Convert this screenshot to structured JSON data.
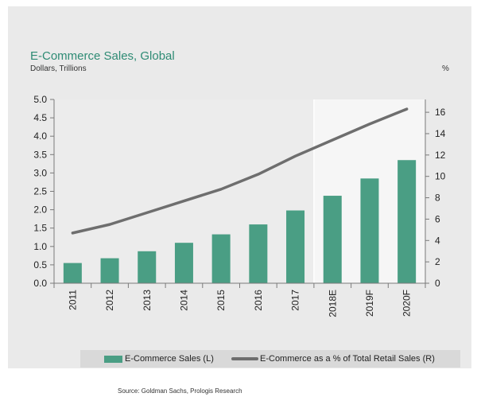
{
  "chart_data": {
    "type": "bar",
    "title": "E-Commerce Sales, Global",
    "ylabel": "Dollars, Trillions",
    "y2label": "%",
    "categories": [
      "2011",
      "2012",
      "2013",
      "2014",
      "2015",
      "2016",
      "2017",
      "2018E",
      "2019F",
      "2020F"
    ],
    "series": [
      {
        "name": "E-Commerce Sales (L)",
        "type": "bar",
        "axis": "left",
        "color": "#4a9e84",
        "values": [
          0.55,
          0.68,
          0.87,
          1.1,
          1.33,
          1.6,
          1.98,
          2.38,
          2.85,
          3.35
        ]
      },
      {
        "name": "E-Commerce as a % of Total Retail Sales (R)",
        "type": "line",
        "axis": "right",
        "color": "#6e6e6e",
        "values": [
          4.7,
          5.5,
          6.6,
          7.7,
          8.8,
          10.2,
          11.9,
          13.4,
          14.9,
          16.3
        ]
      }
    ],
    "ylim": [
      0,
      5.0
    ],
    "yticks": [
      "5.0",
      "4.5",
      "4.0",
      "3.5",
      "3.0",
      "2.5",
      "2.0",
      "1.5",
      "1.0",
      "0.5",
      "0.0"
    ],
    "y2lim": [
      0,
      17.2
    ],
    "y2ticks": [
      "16",
      "14",
      "12",
      "10",
      "8",
      "6",
      "4",
      "2",
      "0"
    ],
    "forecast_start_category": "2018E",
    "legend_position": "bottom",
    "source": "Source: Goldman Sachs, Prologis Research"
  }
}
